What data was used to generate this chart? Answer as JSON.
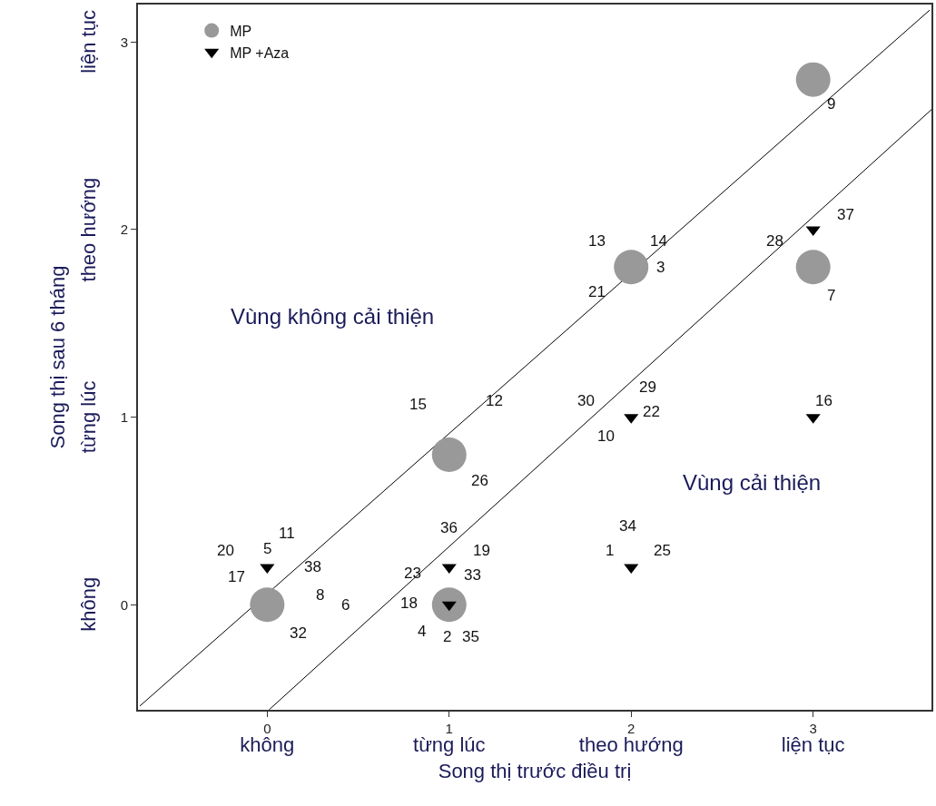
{
  "chart_data": {
    "type": "scatter",
    "xlabel": "Song thị trước điều trị",
    "ylabel": "Song thị sau 6 tháng",
    "xlim": [
      -0.71,
      3.65
    ],
    "ylim": [
      -0.56,
      3.2
    ],
    "xticks": [
      {
        "value": 0,
        "label": "0\nkhông"
      },
      {
        "value": 1,
        "label": "1\ntừng lúc"
      },
      {
        "value": 2,
        "label": "2\ntheo hướng"
      },
      {
        "value": 3,
        "label": "3\nliện tục"
      }
    ],
    "yticks": [
      0,
      1,
      2,
      3
    ],
    "legend": "top left",
    "series": [
      {
        "name": "MP",
        "color": "#999999",
        "marker": "circle",
        "x": [
          0,
          1,
          1,
          2,
          3,
          3
        ],
        "values": [
          0,
          0,
          0.8,
          1.8,
          1.8,
          2.8
        ]
      },
      {
        "name": "MP +Aza",
        "color": "#000000",
        "marker": "triangle",
        "x": [
          0,
          1,
          1,
          2,
          2,
          3,
          3
        ],
        "values": [
          0.2,
          0,
          0.2,
          1,
          0.2,
          1,
          2
        ]
      },
      {
        "type": "line",
        "color": "#000000",
        "marker": "none",
        "x": [
          -0.7,
          3.64
        ],
        "values": [
          -0.54,
          3.17
        ]
      },
      {
        "type": "line",
        "color": "#000000",
        "marker": "none",
        "x": [
          0.01,
          3.65
        ],
        "values": [
          -0.56,
          2.64
        ]
      }
    ],
    "annotations": [
      "Vùng không cải thiện",
      "Vùng cải thiện",
      "9",
      "13",
      "14",
      "3",
      "21",
      "28",
      "37",
      "7",
      "12",
      "15",
      "26",
      "30",
      "29",
      "22",
      "10",
      "16",
      "11",
      "20",
      "5",
      "17",
      "38",
      "8",
      "6",
      "32",
      "36",
      "19",
      "23",
      "33",
      "18",
      "4",
      "2",
      "35",
      "34",
      "1",
      "25",
      "không",
      "từng lúc",
      "theo hướng",
      "liện tục"
    ]
  }
}
